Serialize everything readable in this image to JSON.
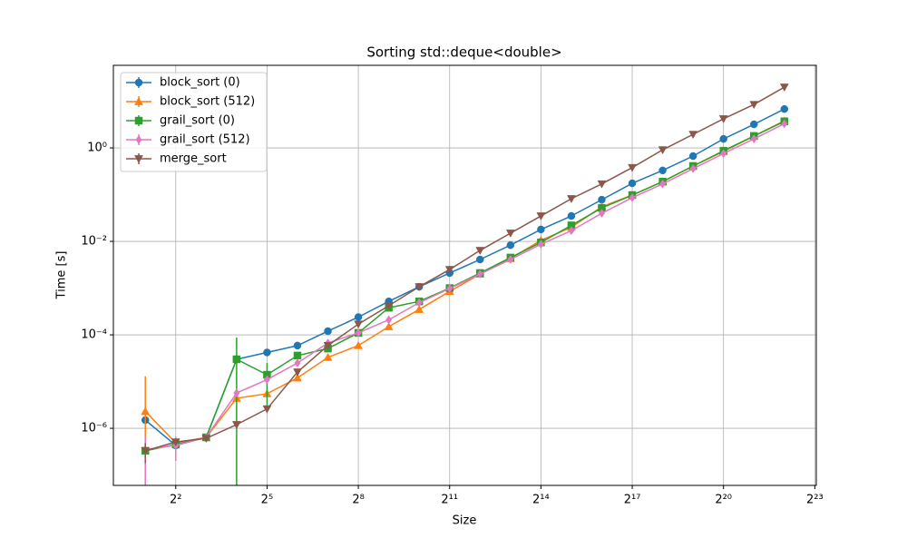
{
  "chart_data": {
    "type": "line",
    "title": "Sorting std::deque<double>",
    "xlabel": "Size",
    "ylabel": "Time [s]",
    "xscale": "log",
    "yscale": "log",
    "grid": true,
    "legend": "upper left",
    "x": [
      2,
      4,
      8,
      16,
      32,
      64,
      128,
      256,
      512,
      1024,
      2048,
      4096,
      8192,
      16384,
      32768,
      65536,
      131072,
      262144,
      524288,
      1048576,
      2097152,
      4194304
    ],
    "xlim": [
      0.966,
      8680000
    ],
    "ylim": [
      6e-08,
      58.6
    ],
    "xticks": [
      {
        "value": 4,
        "label": "2²"
      },
      {
        "value": 32,
        "label": "2⁵"
      },
      {
        "value": 256,
        "label": "2⁸"
      },
      {
        "value": 2048,
        "label": "2¹¹"
      },
      {
        "value": 16384,
        "label": "2¹⁴"
      },
      {
        "value": 131072,
        "label": "2¹⁷"
      },
      {
        "value": 1048576,
        "label": "2²⁰"
      },
      {
        "value": 8388608,
        "label": "2²³"
      }
    ],
    "yticks": [
      {
        "value": 1e-06,
        "label": "10⁻⁶"
      },
      {
        "value": 0.0001,
        "label": "10⁻⁴"
      },
      {
        "value": 0.01,
        "label": "10⁻²"
      },
      {
        "value": 1,
        "label": "10⁰"
      }
    ],
    "series": [
      {
        "name": "block_sort (0)",
        "color": "#1f77b4",
        "marker": "o",
        "values": [
          1.5e-06,
          4.3e-07,
          6.4e-07,
          3e-05,
          4.2e-05,
          5.9e-05,
          0.00012,
          0.00024,
          0.00052,
          0.00107,
          0.0021,
          0.0041,
          0.0083,
          0.018,
          0.035,
          0.078,
          0.175,
          0.33,
          0.67,
          1.56,
          3.2,
          6.8
        ],
        "errors": [
          null,
          null,
          null,
          null,
          null,
          null,
          null,
          null,
          null,
          null,
          null,
          null,
          null,
          null,
          null,
          null,
          null,
          null,
          null,
          null,
          null,
          null
        ]
      },
      {
        "name": "block_sort (512)",
        "color": "#ff7f0e",
        "marker": "^",
        "values": [
          2.3e-06,
          4.9e-07,
          6.4e-07,
          4.4e-06,
          5.5e-06,
          1.2e-05,
          3.3e-05,
          5.9e-05,
          0.00015,
          0.00035,
          0.00085,
          0.002,
          0.0043,
          0.0105,
          0.02,
          0.055,
          0.098,
          0.19,
          0.41,
          0.84,
          1.8,
          3.8
        ],
        "errors": [
          1.07e-05,
          null,
          null,
          null,
          null,
          null,
          null,
          null,
          null,
          null,
          null,
          null,
          null,
          null,
          null,
          null,
          null,
          null,
          null,
          null,
          null,
          null
        ]
      },
      {
        "name": "grail_sort (0)",
        "color": "#2ca02c",
        "marker": "s",
        "values": [
          3.3e-07,
          4.5e-07,
          6.4e-07,
          3e-05,
          1.4e-05,
          3.6e-05,
          5.1e-05,
          0.00011,
          0.00038,
          0.00052,
          0.001,
          0.0021,
          0.0045,
          0.0095,
          0.022,
          0.052,
          0.098,
          0.19,
          0.41,
          0.87,
          1.8,
          3.7
        ],
        "errors": [
          null,
          null,
          null,
          5.7e-05,
          1.1e-05,
          null,
          null,
          null,
          null,
          null,
          null,
          null,
          null,
          null,
          null,
          null,
          null,
          null,
          null,
          null,
          null,
          null
        ]
      },
      {
        "name": "grail_sort (512)",
        "color": "#e377c2",
        "marker": "d",
        "values": [
          3.5e-07,
          4.3e-07,
          6.4e-07,
          5.7e-06,
          1.1e-05,
          2.5e-05,
          6.7e-05,
          0.00011,
          0.00021,
          0.00049,
          0.00098,
          0.002,
          0.0041,
          0.0087,
          0.017,
          0.04,
          0.086,
          0.17,
          0.36,
          0.76,
          1.56,
          3.3
        ],
        "errors": [
          3.1e-07,
          2.3e-07,
          null,
          null,
          null,
          null,
          null,
          null,
          null,
          null,
          null,
          null,
          null,
          null,
          null,
          null,
          null,
          null,
          null,
          null,
          null,
          null
        ]
      },
      {
        "name": "merge_sort",
        "color": "#8c564b",
        "marker": "v",
        "values": [
          3.3e-07,
          5.1e-07,
          6.1e-07,
          1.2e-06,
          2.6e-06,
          1.6e-05,
          5.9e-05,
          0.00017,
          0.00042,
          0.00107,
          0.0025,
          0.0064,
          0.015,
          0.035,
          0.082,
          0.17,
          0.38,
          0.91,
          1.95,
          4.2,
          8.5,
          20
        ],
        "errors": [
          1.5e-07,
          null,
          null,
          null,
          null,
          null,
          null,
          null,
          null,
          null,
          null,
          null,
          null,
          null,
          null,
          null,
          null,
          null,
          null,
          null,
          null,
          null
        ]
      }
    ]
  }
}
